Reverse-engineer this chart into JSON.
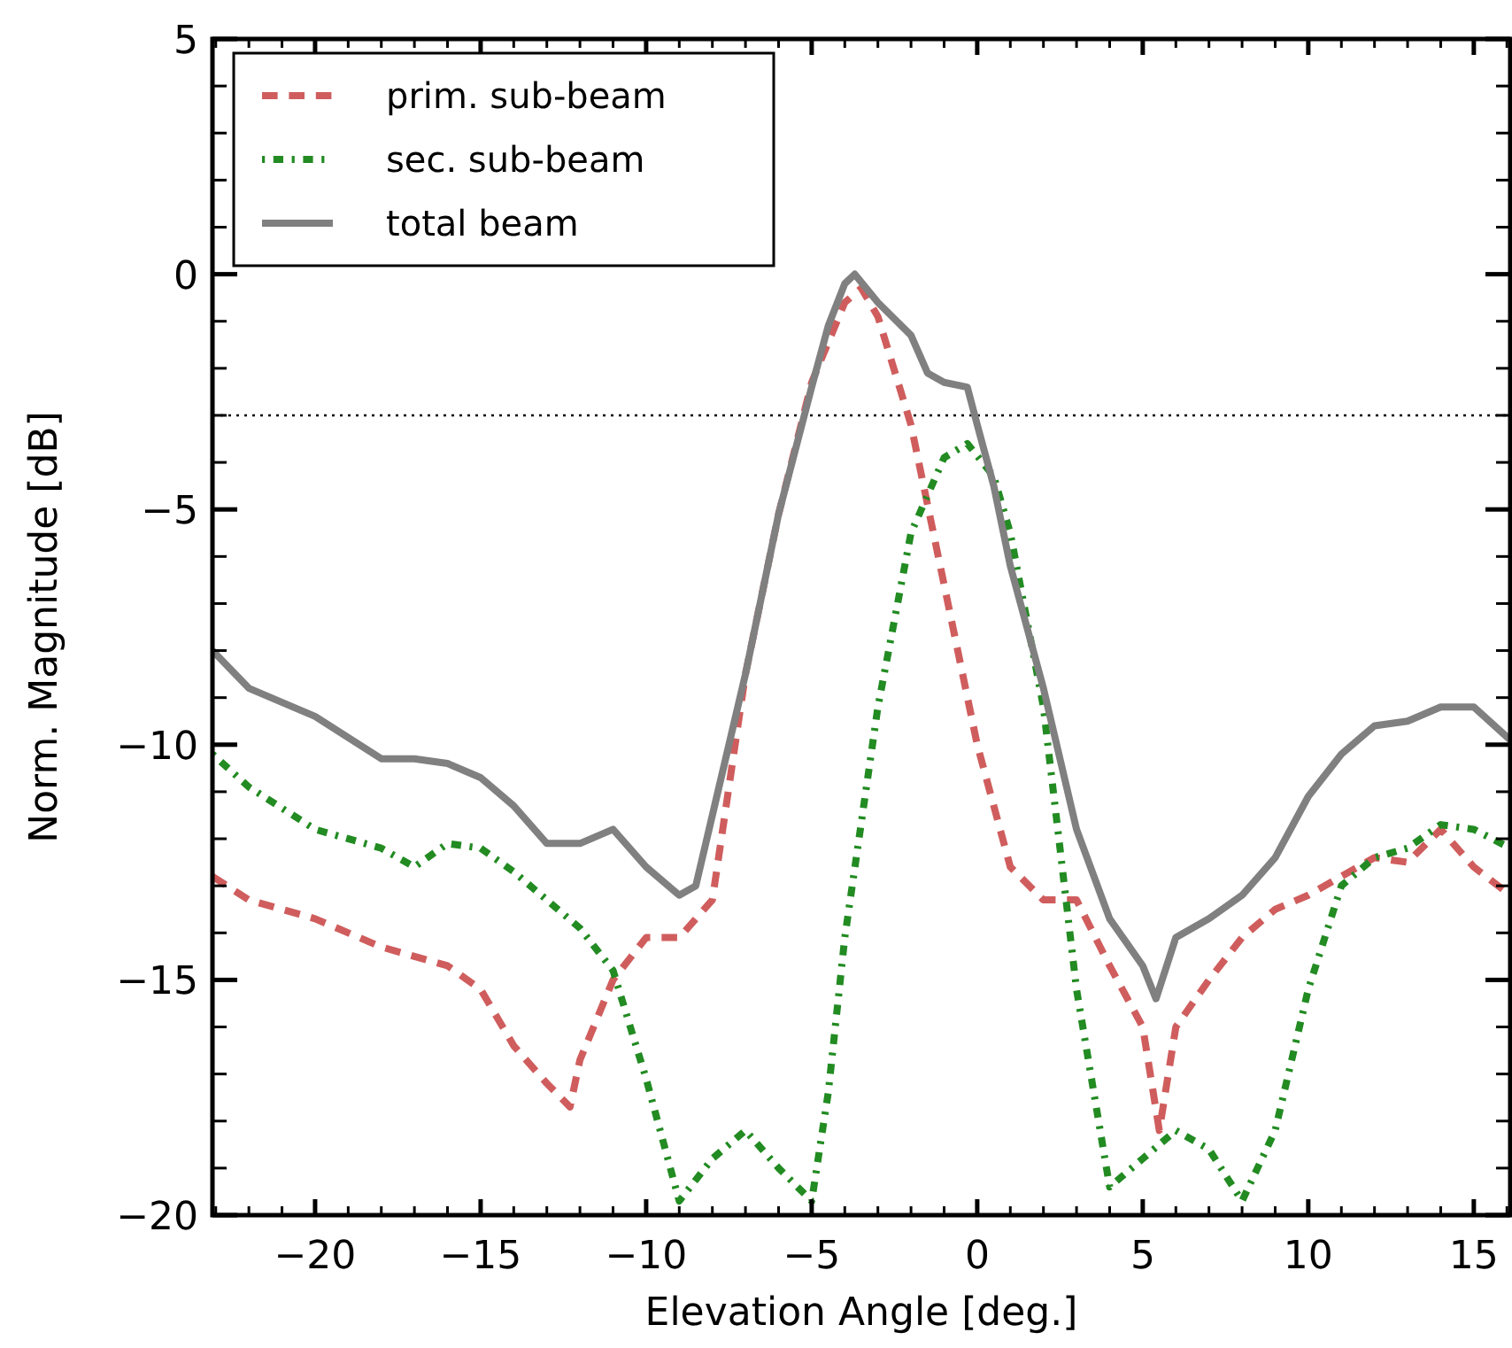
{
  "chart_data": {
    "type": "line",
    "xlabel": "Elevation Angle [deg.]",
    "ylabel": "Norm. Magnitude [dB]",
    "xlim": [
      -23.1,
      16.1
    ],
    "ylim": [
      -20,
      5
    ],
    "xticks": [
      {
        "value": -23,
        "label": null
      },
      {
        "value": -22,
        "label": null
      },
      {
        "value": -21,
        "label": null
      },
      -20,
      {
        "value": -19,
        "label": null
      },
      {
        "value": -18,
        "label": null
      },
      {
        "value": -17,
        "label": null
      },
      {
        "value": -16,
        "label": null
      },
      -15,
      {
        "value": -14,
        "label": null
      },
      {
        "value": -13,
        "label": null
      },
      {
        "value": -12,
        "label": null
      },
      {
        "value": -11,
        "label": null
      },
      -10,
      {
        "value": -9,
        "label": null
      },
      {
        "value": -8,
        "label": null
      },
      {
        "value": -7,
        "label": null
      },
      {
        "value": -6,
        "label": null
      },
      -5,
      {
        "value": -4,
        "label": null
      },
      {
        "value": -3,
        "label": null
      },
      {
        "value": -2,
        "label": null
      },
      {
        "value": -1,
        "label": null
      },
      0,
      {
        "value": 1,
        "label": null
      },
      {
        "value": 2,
        "label": null
      },
      {
        "value": 3,
        "label": null
      },
      {
        "value": 4,
        "label": null
      },
      5,
      {
        "value": 6,
        "label": null
      },
      {
        "value": 7,
        "label": null
      },
      {
        "value": 8,
        "label": null
      },
      {
        "value": 9,
        "label": null
      },
      10,
      {
        "value": 11,
        "label": null
      },
      {
        "value": 12,
        "label": null
      },
      {
        "value": 13,
        "label": null
      },
      {
        "value": 14,
        "label": null
      },
      15,
      {
        "value": 16,
        "label": null
      }
    ],
    "yticks": [
      -20,
      {
        "value": -19,
        "label": null
      },
      {
        "value": -18,
        "label": null
      },
      {
        "value": -17,
        "label": null
      },
      {
        "value": -16,
        "label": null
      },
      -15,
      {
        "value": -14,
        "label": null
      },
      {
        "value": -13,
        "label": null
      },
      {
        "value": -12,
        "label": null
      },
      {
        "value": -11,
        "label": null
      },
      -10,
      {
        "value": -9,
        "label": null
      },
      {
        "value": -8,
        "label": null
      },
      {
        "value": -7,
        "label": null
      },
      {
        "value": -6,
        "label": null
      },
      -5,
      {
        "value": -4,
        "label": null
      },
      {
        "value": -3,
        "label": null
      },
      {
        "value": -2,
        "label": null
      },
      {
        "value": -1,
        "label": null
      },
      0,
      {
        "value": 1,
        "label": null
      },
      {
        "value": 2,
        "label": null
      },
      {
        "value": 3,
        "label": null
      },
      {
        "value": 4,
        "label": null
      },
      5
    ],
    "grid": false,
    "legend": "top left",
    "marker": "none",
    "ref_lines": [
      {
        "axis": "y",
        "value": -3,
        "color": "#000000",
        "line_style": "dotted"
      }
    ],
    "series": [
      {
        "name": "prim. sub-beam",
        "color": "#d05d5d",
        "line_style": "dashed",
        "x": [
          -23.1,
          -22,
          -20,
          -18,
          -16,
          -15,
          -14,
          -13,
          -12.3,
          -12,
          -11,
          -10,
          -9,
          -8,
          -7,
          -6,
          -5,
          -4,
          -3.5,
          -3,
          -2,
          -1,
          0,
          1,
          2,
          3,
          4,
          5,
          5.5,
          6,
          7,
          8,
          9,
          10,
          11,
          12,
          13,
          14,
          15,
          16.1
        ],
        "values": [
          -12.8,
          -13.3,
          -13.7,
          -14.3,
          -14.7,
          -15.2,
          -16.4,
          -17.2,
          -17.7,
          -16.7,
          -15.0,
          -14.1,
          -14.1,
          -13.3,
          -8.5,
          -5.1,
          -2.3,
          -0.6,
          -0.3,
          -0.9,
          -3.2,
          -6.6,
          -10.0,
          -12.6,
          -13.3,
          -13.3,
          -14.7,
          -16.0,
          -18.2,
          -16.0,
          -15.0,
          -14.1,
          -13.5,
          -13.2,
          -12.8,
          -12.4,
          -12.5,
          -11.8,
          -12.6,
          -13.2
        ]
      },
      {
        "name": "sec. sub-beam",
        "color": "#228b22",
        "line_style": "dotted",
        "x": [
          -23.1,
          -22,
          -20,
          -18,
          -17,
          -16,
          -15,
          -14,
          -13,
          -12,
          -11,
          -10,
          -9,
          -8,
          -7,
          -6,
          -5,
          -4.5,
          -4,
          -3,
          -2,
          -1,
          -0.3,
          0.5,
          1,
          2,
          3,
          4,
          5,
          6,
          7,
          8,
          9,
          10,
          11,
          12,
          13,
          14,
          15,
          16.1
        ],
        "values": [
          -10.2,
          -10.9,
          -11.8,
          -12.2,
          -12.6,
          -12.1,
          -12.2,
          -12.7,
          -13.3,
          -13.9,
          -14.8,
          -17.1,
          -19.7,
          -18.8,
          -18.2,
          -19.0,
          -19.7,
          -17.4,
          -14.1,
          -9.2,
          -5.5,
          -3.9,
          -3.6,
          -4.3,
          -5.5,
          -9.2,
          -15.2,
          -19.4,
          -18.8,
          -18.2,
          -18.6,
          -19.7,
          -18.2,
          -15.2,
          -13.0,
          -12.4,
          -12.2,
          -11.7,
          -11.8,
          -12.2
        ]
      },
      {
        "name": "total beam",
        "color": "#808080",
        "line_style": "solid",
        "x": [
          -23.1,
          -22,
          -20,
          -18,
          -17,
          -16,
          -15,
          -14,
          -13,
          -12,
          -11,
          -10,
          -9,
          -8.5,
          -8,
          -7,
          -6,
          -5,
          -4.5,
          -4,
          -3.7,
          -3,
          -2,
          -1.5,
          -1,
          -0.3,
          0,
          0.5,
          1,
          2,
          3,
          4,
          5,
          5.4,
          6,
          7,
          8,
          9,
          10,
          11,
          12,
          13,
          14,
          15,
          16.1
        ],
        "values": [
          -8.0,
          -8.8,
          -9.4,
          -10.3,
          -10.3,
          -10.4,
          -10.7,
          -11.3,
          -12.1,
          -12.1,
          -11.8,
          -12.6,
          -13.2,
          -13.0,
          -11.5,
          -8.5,
          -5.1,
          -2.4,
          -1.1,
          -0.2,
          0,
          -0.6,
          -1.3,
          -2.1,
          -2.3,
          -2.4,
          -3.2,
          -4.5,
          -6.2,
          -8.8,
          -11.8,
          -13.7,
          -14.7,
          -15.4,
          -14.1,
          -13.7,
          -13.2,
          -12.4,
          -11.1,
          -10.2,
          -9.6,
          -9.5,
          -9.2,
          -9.2,
          -9.9
        ]
      }
    ]
  }
}
